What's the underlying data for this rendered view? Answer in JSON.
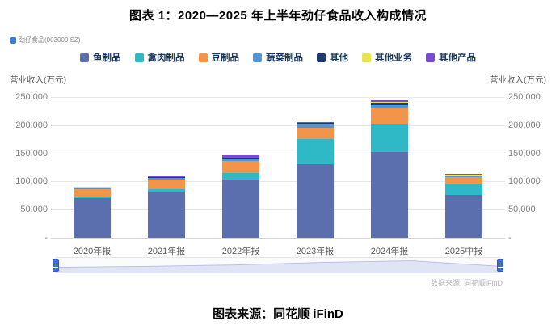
{
  "title": "图表 1：2020—2025 年上半年劲仔食品收入构成情况",
  "caption": "图表来源：同花顺 iFinD",
  "chart": {
    "stock_label": "劲仔食品(003000.SZ)",
    "y_axis_title_left": "营业收入(万元)",
    "y_axis_title_right": "营业收入(万元)",
    "source_note": "数据来源: 同花顺iFinD"
  },
  "chart_data": {
    "type": "bar",
    "stacked": true,
    "title": "2020—2025年上半年劲仔食品收入构成情况",
    "xlabel": "",
    "ylabel": "营业收入(万元)",
    "ylim": [
      0,
      250000
    ],
    "y_ticks": [
      "250,000",
      "200,000",
      "150,000",
      "100,000",
      "50,000",
      "-"
    ],
    "grid": true,
    "legend_position": "top",
    "categories": [
      "2020年报",
      "2021年报",
      "2022年报",
      "2023年报",
      "2024年报",
      "2025中报"
    ],
    "series": [
      {
        "name": "鱼制品",
        "color": "#5b6fae",
        "values": [
          70000,
          82000,
          103000,
          131000,
          152000,
          76000
        ]
      },
      {
        "name": "禽肉制品",
        "color": "#2fb8c5",
        "values": [
          3000,
          4000,
          12000,
          44000,
          51000,
          20000
        ]
      },
      {
        "name": "豆制品",
        "color": "#f2954b",
        "values": [
          13000,
          17000,
          21000,
          21000,
          28000,
          12000
        ]
      },
      {
        "name": "蔬菜制品",
        "color": "#4e96d8",
        "values": [
          3000,
          4000,
          5000,
          6000,
          4000,
          2500
        ]
      },
      {
        "name": "其他",
        "color": "#1f3a6e",
        "values": [
          800,
          1000,
          1200,
          2000,
          5000,
          600
        ]
      },
      {
        "name": "其他业务",
        "color": "#e8e34f",
        "values": [
          400,
          500,
          600,
          700,
          1000,
          400
        ]
      },
      {
        "name": "其他产品",
        "color": "#7a4bd6",
        "values": [
          800,
          2500,
          3200,
          1300,
          3000,
          1500
        ]
      }
    ]
  }
}
